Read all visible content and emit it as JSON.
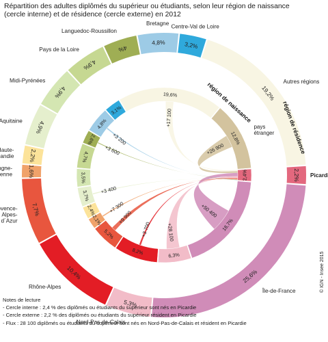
{
  "title": "Répartition des adultes diplômés du supérieur ou étudiants, selon leur région de naissance (cercle interne) et de résidence (cercle externe) en 2012",
  "notes": {
    "heading": "Notes de lecture",
    "lines": [
      "- Cercle interne : 2,4 % des diplômés ou étudiants du supérieur sont nés en Picardie",
      "- Cercle externe : 2,2 % des diplômés ou étudiants du supérieur résident en Picardie",
      "- Flux : 28 100 diplômés ou étudiants du supérieur sont nés en Nord-Pas-de-Calais et résident en Picardie"
    ]
  },
  "credit": "© IGN - Insee 2015",
  "chart_data": {
    "type": "chord",
    "title": "Répartition des adultes diplômés du supérieur ou étudiants, selon leur région de naissance (cercle interne) et de résidence (cercle externe) en 2012",
    "outer_ring_label": "région de résidence",
    "inner_ring_label": "région de naissance",
    "outer_ring": [
      {
        "region": "Bretagne",
        "pct": "4,8%",
        "value": 4.8,
        "color": "#9dcbe6"
      },
      {
        "region": "Centre-Val de Loire",
        "pct": "3,2%",
        "value": 3.2,
        "color": "#2fa9dc"
      },
      {
        "region": "Autres régions",
        "pct": "19,2%",
        "value": 19.2,
        "color": "#f8f5e3"
      },
      {
        "region": "Picardie",
        "pct": "2,2%",
        "value": 2.2,
        "color": "#e3687e"
      },
      {
        "region": "Île-de-France",
        "pct": "25,6%",
        "value": 25.6,
        "color": "#d08cb8"
      },
      {
        "region": "Nord-Pas-de-Calais",
        "pct": "5,3%",
        "value": 5.3,
        "color": "#f2bcc8"
      },
      {
        "region": "Rhône-Alpes",
        "pct": "10,4%",
        "value": 10.4,
        "color": "#e31d25"
      },
      {
        "region": "Provence-Alpes-Côte d´Azur",
        "pct": "7,7%",
        "value": 7.7,
        "color": "#e8563e"
      },
      {
        "region": "Champagne-Ardenne",
        "pct": "1,6%",
        "value": 1.6,
        "color": "#f0a26a"
      },
      {
        "region": "Haute-Normandie",
        "pct": "2,2%",
        "value": 2.2,
        "color": "#fce39a"
      },
      {
        "region": "Aquitaine",
        "pct": "4,9%",
        "value": 4.9,
        "color": "#e5efcd"
      },
      {
        "region": "Midi-Pyrénées",
        "pct": "4,9%",
        "value": 4.9,
        "color": "#d4e6b2"
      },
      {
        "region": "Pays de la Loire",
        "pct": "4,9%",
        "value": 4.9,
        "color": "#c6d892"
      },
      {
        "region": "Languedoc-Roussillon",
        "pct": "4%",
        "value": 4.0,
        "color": "#9fae54"
      }
    ],
    "inner_ring": [
      {
        "region": "Bretagne",
        "pct": "4,8%",
        "value": 4.8,
        "color": "#9dcbe6"
      },
      {
        "region": "Centre-Val de Loire",
        "pct": "3,1%",
        "value": 3.1,
        "color": "#2fa9dc"
      },
      {
        "region": "Autres régions",
        "pct": "19,6%",
        "value": 19.6,
        "color": "#f8f5e3"
      },
      {
        "region": "pays étranger",
        "pct": "12,8%",
        "value": 12.8,
        "color": "#d3c39e"
      },
      {
        "region": "Picardie",
        "pct": "2,4%",
        "value": 2.4,
        "color": "#e3687e"
      },
      {
        "region": "Île-de-France",
        "pct": "18,7%",
        "value": 18.7,
        "color": "#d08cb8"
      },
      {
        "region": "Nord-Pas-de-Calais",
        "pct": "6,3%",
        "value": 6.3,
        "color": "#f2bcc8"
      },
      {
        "region": "Rhône-Alpes",
        "pct": "8,2%",
        "value": 8.2,
        "color": "#e31d25"
      },
      {
        "region": "Provence-Alpes-Côte d´Azur",
        "pct": "5,2%",
        "value": 5.2,
        "color": "#e8563e"
      },
      {
        "region": "Champagne-Ardenne",
        "pct": "2,1%",
        "value": 2.1,
        "color": "#f0a26a"
      },
      {
        "region": "Haute-Normandie",
        "pct": "2,4%",
        "value": 2.4,
        "color": "#fce39a"
      },
      {
        "region": "Aquitaine",
        "pct": "3,7%",
        "value": 3.7,
        "color": "#e5efcd"
      },
      {
        "region": "Midi-Pyrénées",
        "pct": "3,5%",
        "value": 3.5,
        "color": "#d4e6b2"
      },
      {
        "region": "Pays de la Loire",
        "pct": "4,7%",
        "value": 4.7,
        "color": "#c6d892"
      },
      {
        "region": "Languedoc-Roussillon",
        "pct": "2,6%",
        "value": 2.6,
        "color": "#9fae54"
      }
    ],
    "flows_to_picardie": [
      {
        "from": "Autres régions",
        "value": 17100,
        "label": "+17 100"
      },
      {
        "from": "pays étranger",
        "value": 26900,
        "label": "+26 900"
      },
      {
        "from": "Île-de-France",
        "value": 50400,
        "label": "+50 400"
      },
      {
        "from": "Nord-Pas-de-Calais",
        "value": 28100,
        "label": "+28 100"
      },
      {
        "from": "Rhône-Alpes",
        "value": 3700,
        "label": "+3 700"
      },
      {
        "from": "Provence-Alpes-Côte d´Azur",
        "value": 9900,
        "label": "+9 900"
      },
      {
        "from": "Champagne-Ardenne",
        "value": 7300,
        "label": "+7 300"
      },
      {
        "from": "Aquitaine",
        "value": 3400,
        "label": "+3 400"
      },
      {
        "from": "Languedoc-Roussillon",
        "value": 3600,
        "label": "+3 600"
      },
      {
        "from": "Bretagne",
        "value": 3200,
        "label": "+3 200"
      }
    ],
    "highlight": "Picardie"
  }
}
